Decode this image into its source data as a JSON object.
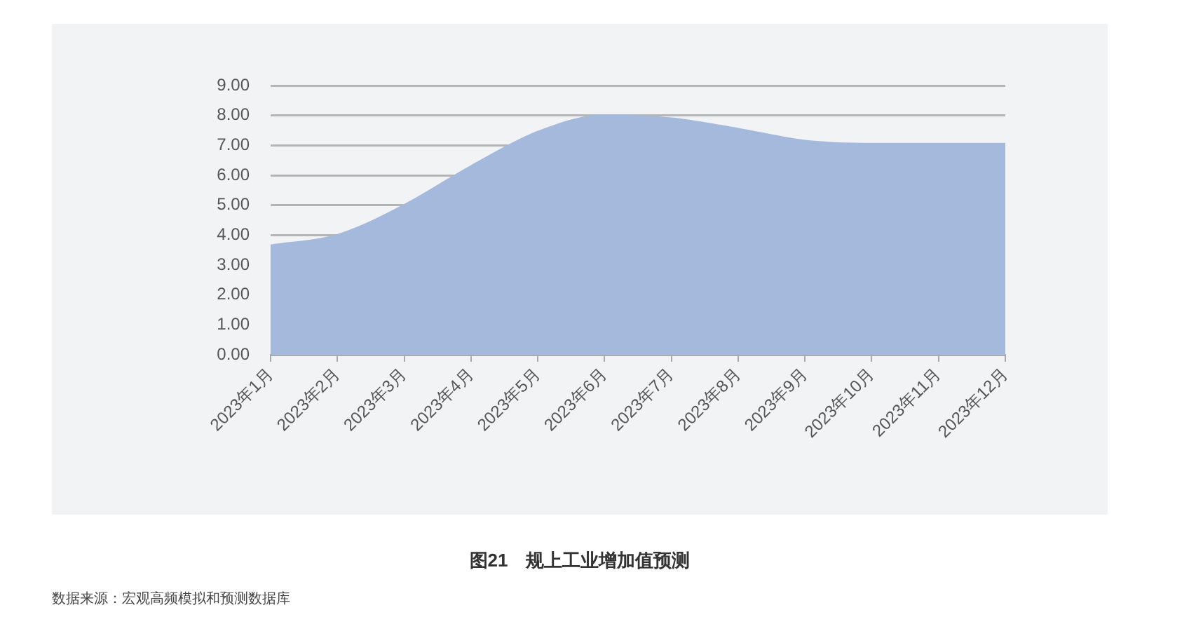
{
  "chart_data": {
    "type": "area",
    "title": "图21　规上工业增加值预测",
    "categories": [
      "2023年1月",
      "2023年2月",
      "2023年3月",
      "2023年4月",
      "2023年5月",
      "2023年6月",
      "2023年7月",
      "2023年8月",
      "2023年9月",
      "2023年10月",
      "2023年11月",
      "2023年12月"
    ],
    "series": [
      {
        "color": "#a5b9dc",
        "values": [
          3.65,
          4.0,
          5.0,
          6.3,
          7.45,
          8.0,
          7.9,
          7.55,
          7.15,
          7.05,
          7.05,
          7.05
        ]
      }
    ],
    "ylim": [
      0,
      9
    ],
    "yticks": [
      {
        "value": 0,
        "label": "0.00"
      },
      {
        "value": 1,
        "label": "1.00"
      },
      {
        "value": 2,
        "label": "2.00"
      },
      {
        "value": 3,
        "label": "3.00"
      },
      {
        "value": 4,
        "label": "4.00"
      },
      {
        "value": 5,
        "label": "5.00"
      },
      {
        "value": 6,
        "label": "6.00"
      },
      {
        "value": 7,
        "label": "7.00"
      },
      {
        "value": 8,
        "label": "8.00"
      },
      {
        "value": 9,
        "label": "9.00"
      }
    ],
    "grid": "y",
    "legend": false,
    "marker": "none",
    "annotations": [
      "数据来源：宏观高频模拟和预测数据库"
    ]
  }
}
